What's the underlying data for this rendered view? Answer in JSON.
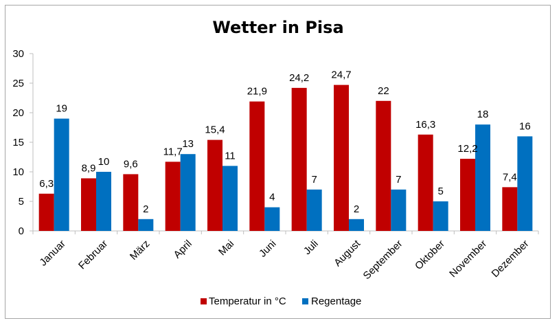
{
  "chart_data": {
    "type": "bar",
    "title": "Wetter in Pisa",
    "categories": [
      "Januar",
      "Februar",
      "März",
      "April",
      "Mai",
      "Juni",
      "Juli",
      "August",
      "September",
      "Oktober",
      "November",
      "Dezember"
    ],
    "series": [
      {
        "name": "Temperatur in °C",
        "color": "#c00000",
        "values": [
          6.3,
          8.9,
          9.6,
          11.7,
          15.4,
          21.9,
          24.2,
          24.7,
          22,
          16.3,
          12.2,
          7.4
        ],
        "labels": [
          "6,3",
          "8,9",
          "9,6",
          "11,7",
          "15,4",
          "21,9",
          "24,2",
          "24,7",
          "22",
          "16,3",
          "12,2",
          "7,4"
        ]
      },
      {
        "name": "Regentage",
        "color": "#0070c0",
        "values": [
          19,
          10,
          2,
          13,
          11,
          4,
          7,
          2,
          7,
          5,
          18,
          16
        ],
        "labels": [
          "19",
          "10",
          "2",
          "13",
          "11",
          "4",
          "7",
          "2",
          "7",
          "5",
          "18",
          "16"
        ]
      }
    ],
    "ylim": [
      0,
      30
    ],
    "yticks": [
      "0",
      "5",
      "10",
      "15",
      "20",
      "25",
      "30"
    ],
    "xlabel": "",
    "ylabel": "",
    "grid": false,
    "legend": "bottom"
  }
}
